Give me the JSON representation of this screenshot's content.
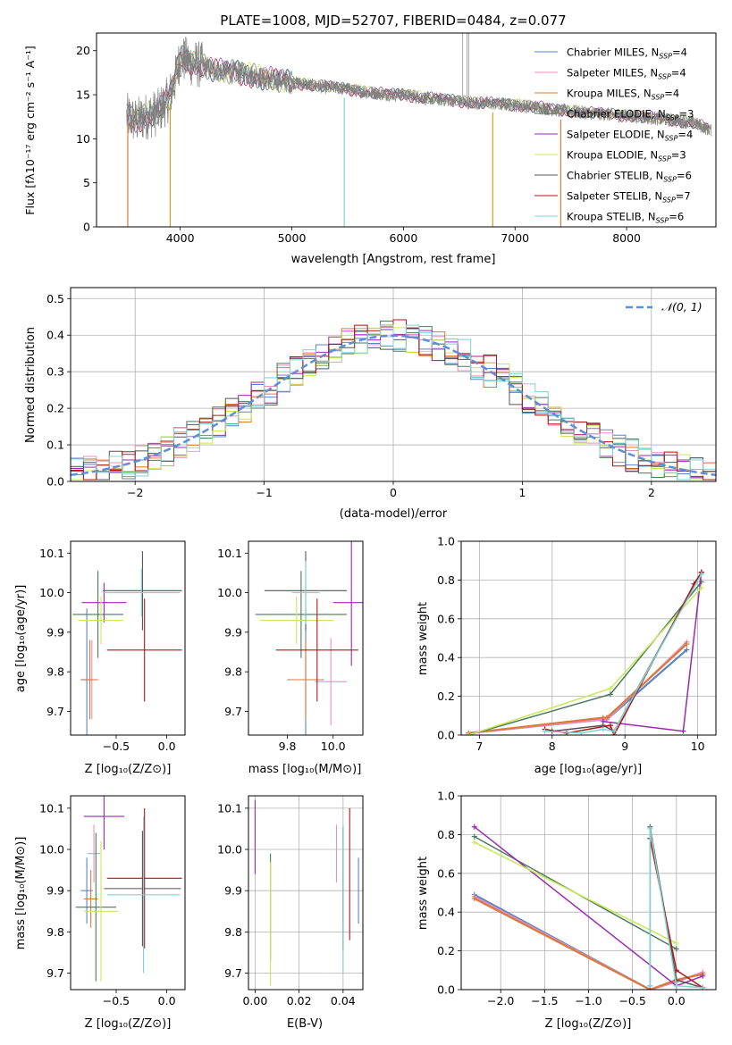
{
  "colors": {
    "chabrier_miles": "#5b84c4",
    "salpeter_miles": "#e58fbf",
    "kroupa_miles": "#d97a3a",
    "chabrier_elodie": "#4a7a5a",
    "salpeter_elodie": "#9a2ab0",
    "kroupa_elodie": "#c8e85a",
    "chabrier_stelib": "#555555",
    "salpeter_stelib": "#b01515",
    "kroupa_stelib": "#7fd4d4",
    "data_spectrum": "#808080",
    "normal_curve": "#5b8fd6",
    "grid": "#b0b0b0"
  },
  "chart_data": [
    {
      "id": "spectrum",
      "type": "line",
      "title": "PLATE=1008, MJD=52707, FIBERID=0484, z=0.077",
      "xlabel": "wavelength [Angstrom, rest frame]",
      "ylabel": "Flux [fλ10⁻¹⁷ erg cm⁻² s⁻¹ A⁻¹]",
      "xlim": [
        3250,
        8800
      ],
      "ylim": [
        0,
        22
      ],
      "xticks": [
        4000,
        5000,
        6000,
        7000,
        8000
      ],
      "yticks": [
        0,
        5,
        10,
        15,
        20
      ],
      "grid": false,
      "legend_position": "top-right",
      "legend": [
        {
          "label": "Chabrier MILES, N",
          "sub": "SSP",
          "val": "=4"
        },
        {
          "label": "Salpeter MILES, N",
          "sub": "SSP",
          "val": "=4"
        },
        {
          "label": "Kroupa MILES, N",
          "sub": "SSP",
          "val": "=4"
        },
        {
          "label": "Chabrier ELODIE, N",
          "sub": "SSP",
          "val": "=3"
        },
        {
          "label": "Salpeter ELODIE, N",
          "sub": "SSP",
          "val": "=4"
        },
        {
          "label": "Kroupa ELODIE, N",
          "sub": "SSP",
          "val": "=3"
        },
        {
          "label": "Chabrier STELIB, N",
          "sub": "SSP",
          "val": "=6"
        },
        {
          "label": "Salpeter STELIB, N",
          "sub": "SSP",
          "val": "=7"
        },
        {
          "label": "Kroupa STELIB, N",
          "sub": "SSP",
          "val": "=6"
        }
      ],
      "data_continuum": {
        "x": [
          3530,
          3600,
          3700,
          3800,
          3900,
          3950,
          4000,
          4100,
          4200,
          4300,
          4400,
          4500,
          4600,
          4700,
          4800,
          4900,
          5000,
          5200,
          5400,
          5600,
          5800,
          6000,
          6200,
          6400,
          6600,
          6800,
          7000,
          7200,
          7400,
          7600,
          7800,
          8000,
          8200,
          8400,
          8600,
          8750
        ],
        "y": [
          12.5,
          12.0,
          12.6,
          13.0,
          14.6,
          16.5,
          19.2,
          18.6,
          18.3,
          17.8,
          17.6,
          17.5,
          17.3,
          17.0,
          16.7,
          16.6,
          16.4,
          16.0,
          15.8,
          15.4,
          15.1,
          15.0,
          14.6,
          14.4,
          14.1,
          14.0,
          13.8,
          13.6,
          13.2,
          13.0,
          12.8,
          12.6,
          12.4,
          12.1,
          11.8,
          11.0
        ]
      }
    },
    {
      "id": "residuals",
      "type": "line",
      "xlabel": "(data-model)/error",
      "ylabel": "Normed distribution",
      "xlim": [
        -2.5,
        2.5
      ],
      "ylim": [
        0,
        0.53
      ],
      "xticks": [
        -2,
        -1,
        0,
        1,
        2
      ],
      "yticks": [
        0.0,
        0.1,
        0.2,
        0.3,
        0.4,
        0.5
      ],
      "grid": true,
      "legend_position": "top-right",
      "legend": [
        {
          "label": "𝒩(0, 1)"
        }
      ],
      "series_note": "9 step histograms (one per model) plus a dashed standard normal curve"
    },
    {
      "id": "age_vs_Z",
      "type": "scatter",
      "xlabel": "Z [log₁₀(Z/Z⊙)]",
      "ylabel": "age  [log₁₀(age/yr)]",
      "xlim": [
        -0.95,
        0.18
      ],
      "ylim": [
        9.64,
        10.13
      ],
      "xticks": [
        -0.5,
        0.0
      ],
      "yticks": [
        9.7,
        9.8,
        9.9,
        10.0,
        10.1
      ],
      "grid": false,
      "points": [
        {
          "model": "chabrier_miles",
          "x": -0.79,
          "y": 9.78,
          "xerr": 0.06,
          "yerr": 0.18
        },
        {
          "model": "salpeter_miles",
          "x": -0.74,
          "y": 9.78,
          "xerr": 0.07,
          "yerr": 0.1
        },
        {
          "model": "kroupa_miles",
          "x": -0.76,
          "y": 9.78,
          "xerr": 0.07,
          "yerr": 0.1
        },
        {
          "model": "chabrier_elodie",
          "x": -0.68,
          "y": 9.945,
          "xerr": 0.25,
          "yerr": 0.11
        },
        {
          "model": "salpeter_elodie",
          "x": -0.62,
          "y": 9.975,
          "xerr": 0.22,
          "yerr": 0.05
        },
        {
          "model": "kroupa_elodie",
          "x": -0.65,
          "y": 9.93,
          "xerr": 0.22,
          "yerr": 0.06
        },
        {
          "model": "chabrier_stelib",
          "x": -0.24,
          "y": 10.005,
          "xerr": 0.39,
          "yerr": 0.1
        },
        {
          "model": "salpeter_stelib",
          "x": -0.22,
          "y": 9.855,
          "xerr": 0.37,
          "yerr": 0.13
        },
        {
          "model": "kroupa_stelib",
          "x": -0.25,
          "y": 10.0,
          "xerr": 0.38,
          "yerr": 0.06
        }
      ]
    },
    {
      "id": "age_vs_mass",
      "type": "scatter",
      "xlabel": "mass [log₁₀(M/M⊙)]",
      "xlim": [
        9.63,
        10.13
      ],
      "ylim": [
        9.64,
        10.13
      ],
      "xticks": [
        9.8,
        10.0
      ],
      "yticks": [
        9.7,
        9.8,
        9.9,
        10.0,
        10.1
      ],
      "grid": false,
      "points": [
        {
          "model": "chabrier_miles",
          "x": 9.88,
          "y": 9.78,
          "xerr": 0.08,
          "yerr": 0.18
        },
        {
          "model": "salpeter_miles",
          "x": 9.99,
          "y": 9.775,
          "xerr": 0.07,
          "yerr": 0.11
        },
        {
          "model": "kroupa_miles",
          "x": 9.88,
          "y": 9.78,
          "xerr": 0.07,
          "yerr": 0.1
        },
        {
          "model": "chabrier_elodie",
          "x": 9.86,
          "y": 9.945,
          "xerr": 0.2,
          "yerr": 0.11
        },
        {
          "model": "salpeter_elodie",
          "x": 10.08,
          "y": 9.975,
          "xerr": 0.08,
          "yerr": 0.16
        },
        {
          "model": "kroupa_elodie",
          "x": 9.84,
          "y": 9.93,
          "xerr": 0.16,
          "yerr": 0.06
        },
        {
          "model": "chabrier_stelib",
          "x": 9.88,
          "y": 10.005,
          "xerr": 0.18,
          "yerr": 0.1
        },
        {
          "model": "salpeter_stelib",
          "x": 9.93,
          "y": 9.855,
          "xerr": 0.18,
          "yerr": 0.13
        },
        {
          "model": "kroupa_stelib",
          "x": 9.88,
          "y": 10.0,
          "xerr": 0.06,
          "yerr": 0.08
        }
      ]
    },
    {
      "id": "mass_weight_vs_age",
      "type": "line",
      "xlabel": "age  [log₁₀(age/yr)]",
      "ylabel": "mass weight",
      "xlim": [
        6.75,
        10.25
      ],
      "ylim": [
        0,
        1.0
      ],
      "xticks": [
        7,
        8,
        9,
        10
      ],
      "yticks": [
        0.0,
        0.2,
        0.4,
        0.6,
        0.8,
        1.0
      ],
      "grid": true,
      "series": [
        {
          "model": "chabrier_miles",
          "x": [
            6.85,
            8.7,
            8.75,
            9.85
          ],
          "y": [
            0.01,
            0.08,
            0.08,
            0.44
          ]
        },
        {
          "model": "salpeter_miles",
          "x": [
            6.85,
            8.7,
            8.75,
            9.85
          ],
          "y": [
            0.01,
            0.08,
            0.08,
            0.48
          ]
        },
        {
          "model": "kroupa_miles",
          "x": [
            6.85,
            8.7,
            8.75,
            9.85
          ],
          "y": [
            0.01,
            0.09,
            0.09,
            0.47
          ]
        },
        {
          "model": "chabrier_elodie",
          "x": [
            6.85,
            8.8,
            10.05
          ],
          "y": [
            0.0,
            0.21,
            0.79
          ]
        },
        {
          "model": "salpeter_elodie",
          "x": [
            8.7,
            9.8,
            10.05
          ],
          "y": [
            0.07,
            0.02,
            0.84
          ]
        },
        {
          "model": "kroupa_elodie",
          "x": [
            6.85,
            8.8,
            10.05
          ],
          "y": [
            0.0,
            0.24,
            0.76
          ]
        },
        {
          "model": "chabrier_stelib",
          "x": [
            8.0,
            8.7,
            8.85,
            10.05
          ],
          "y": [
            0.02,
            0.05,
            0.02,
            0.84
          ]
        },
        {
          "model": "salpeter_stelib",
          "x": [
            7.9,
            8.2,
            8.8,
            8.85,
            9.95,
            10.05
          ],
          "y": [
            0.03,
            0.01,
            0.05,
            0.0,
            0.78,
            0.84
          ]
        },
        {
          "model": "kroupa_stelib",
          "x": [
            7.9,
            8.4,
            8.7,
            8.85,
            10.05
          ],
          "y": [
            0.02,
            0.01,
            0.03,
            0.02,
            0.83
          ]
        }
      ]
    },
    {
      "id": "mass_vs_Z",
      "type": "scatter",
      "xlabel": "Z [log₁₀(Z/Z⊙)]",
      "ylabel": "mass [log₁₀(M/M⊙)]",
      "xlim": [
        -0.95,
        0.18
      ],
      "ylim": [
        9.66,
        10.13
      ],
      "xticks": [
        -0.5,
        0.0
      ],
      "yticks": [
        9.7,
        9.8,
        9.9,
        10.0,
        10.1
      ],
      "grid": false,
      "points": [
        {
          "model": "chabrier_miles",
          "x": -0.79,
          "y": 9.9,
          "xerr": 0.06,
          "yerr": 0.08
        },
        {
          "model": "salpeter_miles",
          "x": -0.72,
          "y": 9.99,
          "xerr": 0.06,
          "yerr": 0.07
        },
        {
          "model": "kroupa_miles",
          "x": -0.75,
          "y": 9.88,
          "xerr": 0.07,
          "yerr": 0.07
        },
        {
          "model": "chabrier_elodie",
          "x": -0.7,
          "y": 9.86,
          "xerr": 0.2,
          "yerr": 0.18
        },
        {
          "model": "salpeter_elodie",
          "x": -0.62,
          "y": 10.08,
          "xerr": 0.2,
          "yerr": 0.08
        },
        {
          "model": "kroupa_elodie",
          "x": -0.65,
          "y": 9.85,
          "xerr": 0.17,
          "yerr": 0.17
        },
        {
          "model": "chabrier_stelib",
          "x": -0.24,
          "y": 9.905,
          "xerr": 0.38,
          "yerr": 0.14
        },
        {
          "model": "salpeter_stelib",
          "x": -0.22,
          "y": 9.93,
          "xerr": 0.37,
          "yerr": 0.17
        },
        {
          "model": "kroupa_stelib",
          "x": -0.23,
          "y": 9.89,
          "xerr": 0.36,
          "yerr": 0.19
        }
      ]
    },
    {
      "id": "mass_vs_ebv",
      "type": "scatter",
      "xlabel": "E(B-V)",
      "xlim": [
        -0.003,
        0.049
      ],
      "ylim": [
        9.66,
        10.13
      ],
      "xticks": [
        0.0,
        0.02,
        0.04
      ],
      "yticks": [
        9.7,
        9.8,
        9.9,
        10.0,
        10.1
      ],
      "grid": true,
      "points": [
        {
          "model": "chabrier_miles",
          "x": 0.047,
          "y": 9.9,
          "yerr": 0.08
        },
        {
          "model": "salpeter_miles",
          "x": 0.037,
          "y": 9.99,
          "yerr": 0.07
        },
        {
          "model": "kroupa_miles",
          "x": 0.04,
          "y": 9.88,
          "yerr": 0.06
        },
        {
          "model": "chabrier_elodie",
          "x": 0.007,
          "y": 9.86,
          "yerr": 0.13
        },
        {
          "model": "salpeter_elodie",
          "x": 0.0,
          "y": 10.03,
          "yerr": 0.09
        },
        {
          "model": "kroupa_elodie",
          "x": 0.007,
          "y": 9.82,
          "yerr": 0.15
        },
        {
          "model": "chabrier_stelib",
          "x": 0.04,
          "y": 9.905,
          "yerr": 0.15
        },
        {
          "model": "salpeter_stelib",
          "x": 0.043,
          "y": 9.94,
          "yerr": 0.16
        },
        {
          "model": "kroupa_stelib",
          "x": 0.04,
          "y": 9.88,
          "yerr": 0.18
        }
      ]
    },
    {
      "id": "mass_weight_vs_Z",
      "type": "line",
      "xlabel": "Z [log₁₀(Z/Z⊙)]",
      "ylabel": "mass weight",
      "xlim": [
        -2.45,
        0.45
      ],
      "ylim": [
        0,
        1.0
      ],
      "xticks": [
        -2.0,
        -1.5,
        -1.0,
        -0.5,
        0.0
      ],
      "yticks": [
        0.0,
        0.2,
        0.4,
        0.6,
        0.8,
        1.0
      ],
      "grid": true,
      "series": [
        {
          "model": "chabrier_miles",
          "x": [
            -2.3,
            -0.3,
            0.0,
            0.3
          ],
          "y": [
            0.49,
            0.0,
            0.05,
            0.08
          ]
        },
        {
          "model": "salpeter_miles",
          "x": [
            -2.3,
            -0.3,
            0.0,
            0.3
          ],
          "y": [
            0.48,
            0.0,
            0.04,
            0.09
          ]
        },
        {
          "model": "kroupa_miles",
          "x": [
            -2.3,
            -0.3,
            0.0,
            0.3
          ],
          "y": [
            0.47,
            0.0,
            0.05,
            0.08
          ]
        },
        {
          "model": "chabrier_elodie",
          "x": [
            -2.3,
            0.0
          ],
          "y": [
            0.79,
            0.21
          ]
        },
        {
          "model": "salpeter_elodie",
          "x": [
            -2.3,
            0.0,
            0.3
          ],
          "y": [
            0.84,
            0.02,
            0.07
          ]
        },
        {
          "model": "kroupa_elodie",
          "x": [
            -2.3,
            0.0
          ],
          "y": [
            0.76,
            0.24
          ]
        },
        {
          "model": "chabrier_stelib",
          "x": [
            -0.3,
            -0.3,
            0.0,
            0.3
          ],
          "y": [
            0.02,
            0.84,
            0.05,
            0.01
          ]
        },
        {
          "model": "salpeter_stelib",
          "x": [
            -0.3,
            -0.3,
            0.0,
            0.3
          ],
          "y": [
            0.0,
            0.78,
            0.1,
            0.01
          ]
        },
        {
          "model": "kroupa_stelib",
          "x": [
            -0.3,
            -0.3,
            0.0,
            0.3
          ],
          "y": [
            0.02,
            0.83,
            0.02,
            0.01
          ]
        }
      ]
    }
  ]
}
